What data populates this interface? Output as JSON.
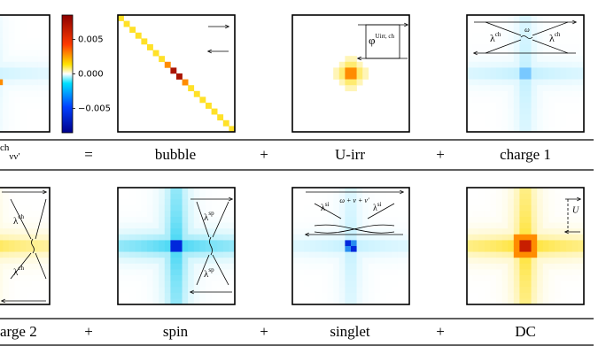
{
  "colorbar": {
    "range": [
      -0.0085,
      0.0085
    ],
    "ticks": [
      0.005,
      {
        "value": 0,
        "label": "0.000"
      },
      {
        "value": -0.005,
        "label": "−0.005"
      }
    ]
  },
  "lhs": {
    "sup": "ch",
    "sub": "νν′"
  },
  "row1_terms": [
    "=",
    "bubble",
    "+",
    "U-irr",
    "+",
    "charge 1"
  ],
  "row2_terms": [
    "arge 2",
    "+",
    "spin",
    "+",
    "singlet",
    "+",
    "DC"
  ],
  "diagrams": {
    "phi": "φ",
    "uirr_sup": "Uirr, ch",
    "lambda": "λ",
    "ch": "ch",
    "sp": "sp",
    "si": "si",
    "omega": "ω",
    "freq_sum": "ω + ν + ν′",
    "U": "U"
  }
}
